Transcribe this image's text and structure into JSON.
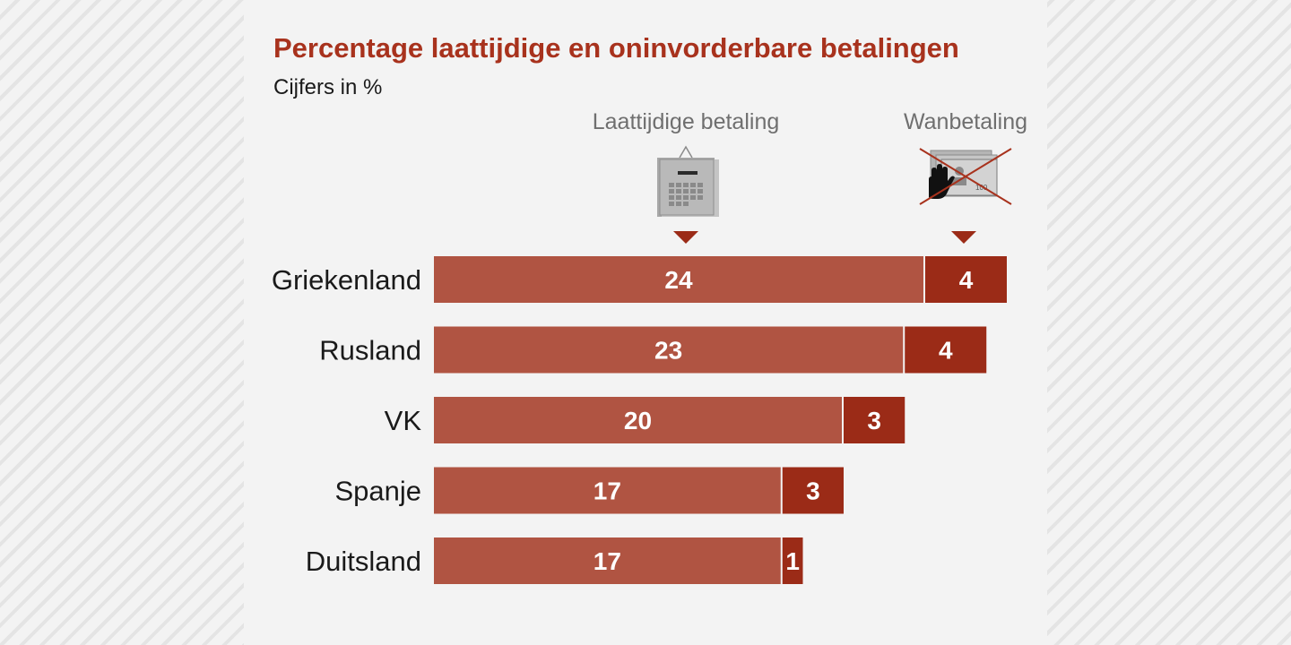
{
  "title": "Percentage laattijdige en oninvorderbare betalingen",
  "subtitle": "Cijfers in %",
  "legend": {
    "late_label": "Laattijdige betaling",
    "default_label": "Wanbetaling",
    "late_icon": "calendar-icon",
    "default_icon": "crossed-out-payment-icon"
  },
  "colors": {
    "late": "#b05442",
    "default": "#9b2b17",
    "title": "#a8321d"
  },
  "chart_data": {
    "type": "bar",
    "orientation": "horizontal",
    "stacked": true,
    "categories": [
      "Griekenland",
      "Rusland",
      "VK",
      "Spanje",
      "Duitsland"
    ],
    "series": [
      {
        "name": "Laattijdige betaling",
        "values": [
          24,
          23,
          20,
          17,
          17
        ]
      },
      {
        "name": "Wanbetaling",
        "values": [
          4,
          4,
          3,
          3,
          1
        ]
      }
    ],
    "data_labels": true,
    "title": "Percentage laattijdige en oninvorderbare betalingen",
    "subtitle": "Cijfers in %",
    "grid": false,
    "legend_position": "top"
  }
}
